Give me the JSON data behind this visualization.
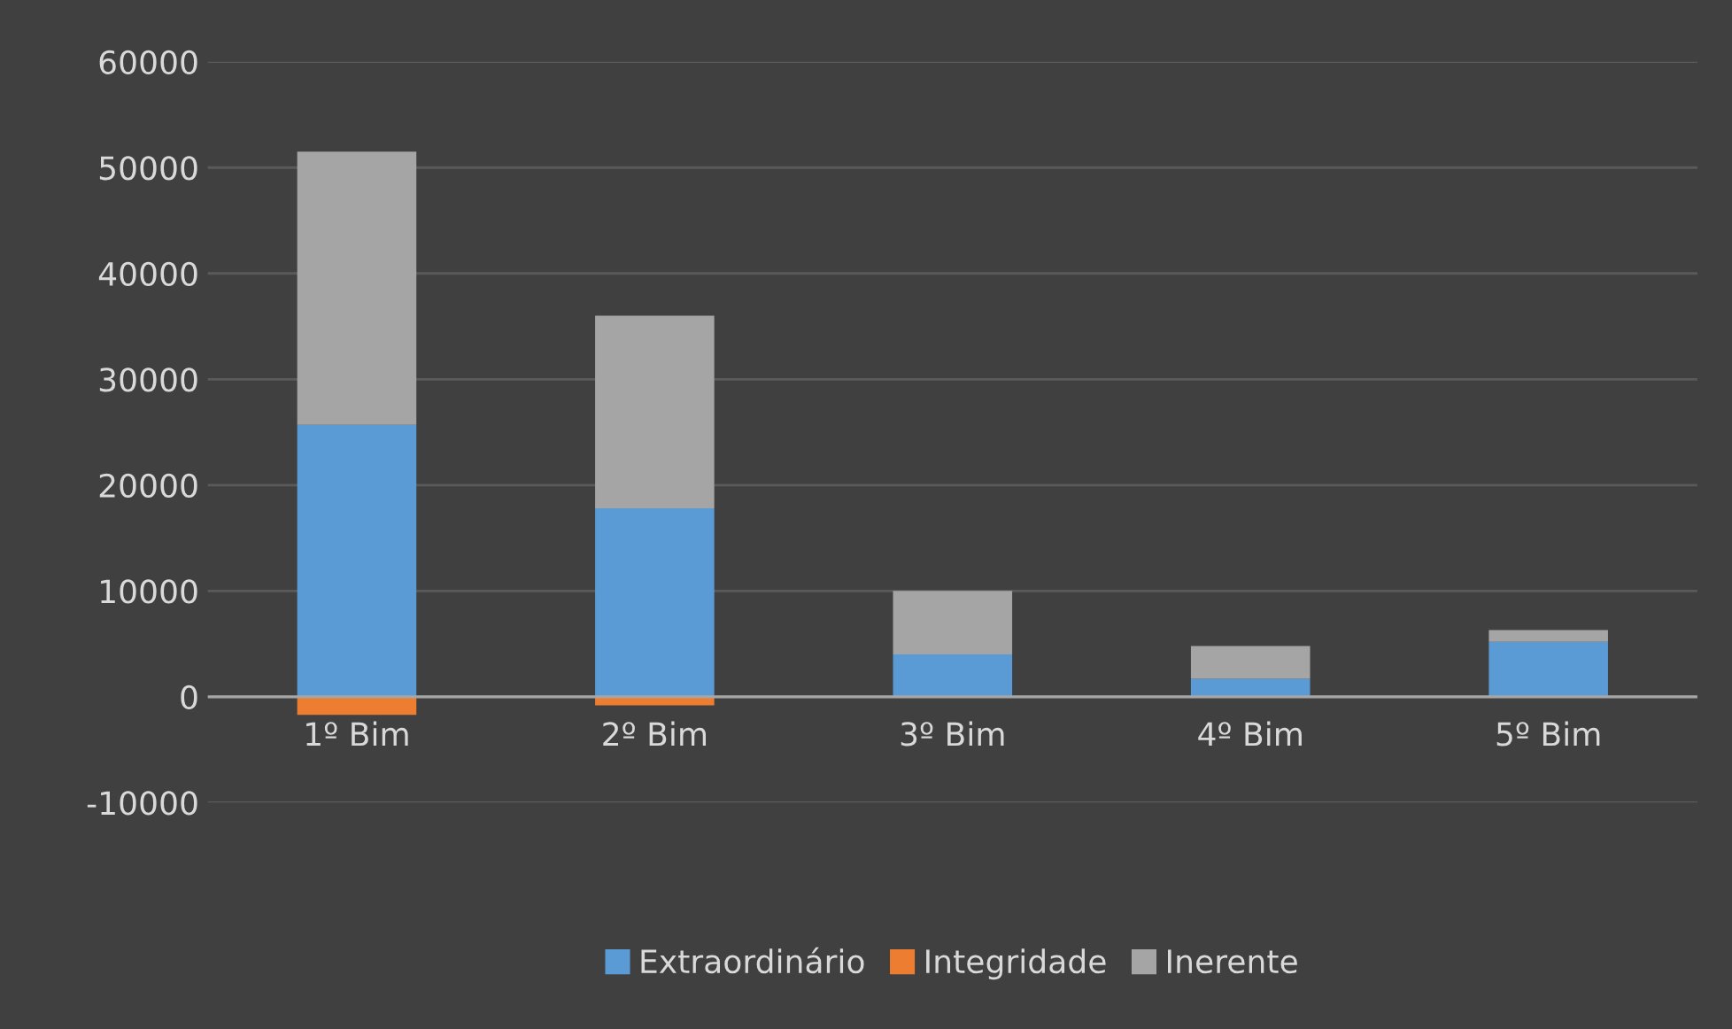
{
  "chart_data": {
    "type": "bar",
    "stacked": true,
    "categories": [
      "1º Bim",
      "2º Bim",
      "3º Bim",
      "4º Bim",
      "5º Bim"
    ],
    "series": [
      {
        "name": "Extraordinário",
        "color": "#5b9bd5",
        "values": [
          25700,
          17800,
          4000,
          1700,
          5200
        ]
      },
      {
        "name": "Integridade",
        "color": "#ed7d31",
        "values": [
          -1700,
          -800,
          0,
          0,
          0
        ]
      },
      {
        "name": "Inerente",
        "color": "#a5a5a5",
        "values": [
          25800,
          18200,
          6000,
          3100,
          1100
        ]
      }
    ],
    "ylim": [
      -10000,
      60000
    ],
    "yticks": [
      -10000,
      0,
      10000,
      20000,
      30000,
      40000,
      50000,
      60000
    ],
    "grid": "y",
    "legend": "bottom"
  }
}
